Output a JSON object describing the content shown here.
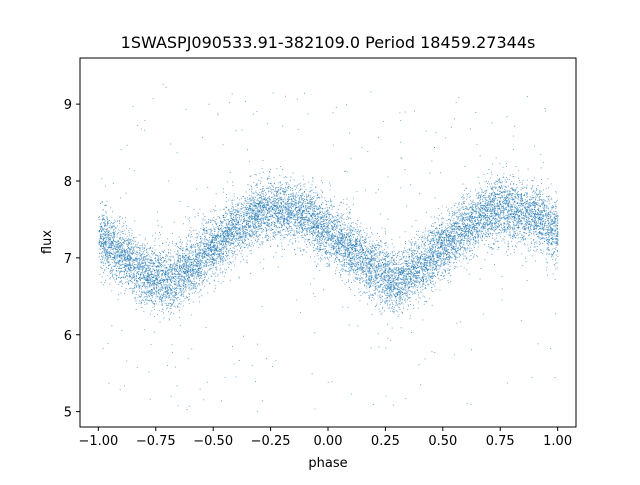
{
  "chart_data": {
    "type": "scatter",
    "title": "1SWASPJ090533.91-382109.0 Period 18459.27344s",
    "xlabel": "phase",
    "ylabel": "flux",
    "xlim": [
      -1.08,
      1.08
    ],
    "ylim": [
      4.8,
      9.6
    ],
    "x_ticks": [
      -1.0,
      -0.75,
      -0.5,
      -0.25,
      0.0,
      0.25,
      0.5,
      0.75,
      1.0
    ],
    "x_tick_labels": [
      "−1.00",
      "−0.75",
      "−0.50",
      "−0.25",
      "0.00",
      "0.25",
      "0.50",
      "0.75",
      "1.00"
    ],
    "y_ticks": [
      5,
      6,
      7,
      8,
      9
    ],
    "y_tick_labels": [
      "5",
      "6",
      "7",
      "8",
      "9"
    ],
    "grid": false,
    "legend": "none",
    "marker_color": "#1f77b4",
    "series": [
      {
        "phase_range": [
          -1.0,
          1.0
        ],
        "point_count_estimate": 13000,
        "trend": {
          "phase": [
            -1.0,
            -0.9,
            -0.8,
            -0.7,
            -0.6,
            -0.5,
            -0.4,
            -0.3,
            -0.2,
            -0.1,
            0.0,
            0.1,
            0.2,
            0.3,
            0.4,
            0.5,
            0.6,
            0.7,
            0.8,
            0.9,
            1.0
          ],
          "flux": [
            7.25,
            7.05,
            6.8,
            6.7,
            6.9,
            7.15,
            7.4,
            7.6,
            7.65,
            7.55,
            7.35,
            7.1,
            6.85,
            6.7,
            6.9,
            7.15,
            7.4,
            7.6,
            7.65,
            7.55,
            7.35
          ]
        },
        "scatter_sigma": 0.2,
        "outlier_range": [
          5.0,
          9.3
        ]
      }
    ]
  }
}
